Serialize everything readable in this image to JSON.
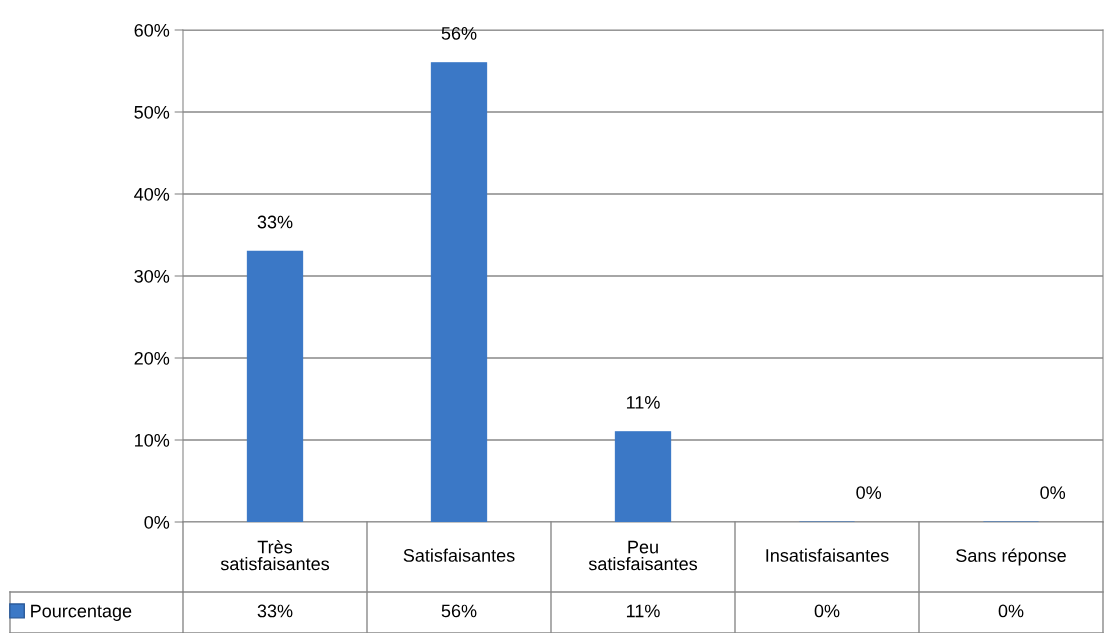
{
  "chart_data": {
    "type": "bar",
    "categories": [
      "Très\nsatisfaisantes",
      "Satisfaisantes",
      "Peu\nsatisfaisantes",
      "Insatisfaisantes",
      "Sans réponse"
    ],
    "series": [
      {
        "name": "Pourcentage",
        "color": "#3b78c6",
        "values": [
          33,
          56,
          11,
          0,
          0
        ],
        "value_labels": [
          "33%",
          "56%",
          "11%",
          "0%",
          "0%"
        ]
      }
    ],
    "ylim": [
      0,
      60
    ],
    "yticks": [
      {
        "value": 0,
        "label": "0%"
      },
      {
        "value": 10,
        "label": "10%"
      },
      {
        "value": 20,
        "label": "20%"
      },
      {
        "value": 30,
        "label": "30%"
      },
      {
        "value": 40,
        "label": "40%"
      },
      {
        "value": 50,
        "label": "50%"
      },
      {
        "value": 60,
        "label": "60%"
      }
    ],
    "grid": "y",
    "legend": "bottom"
  }
}
